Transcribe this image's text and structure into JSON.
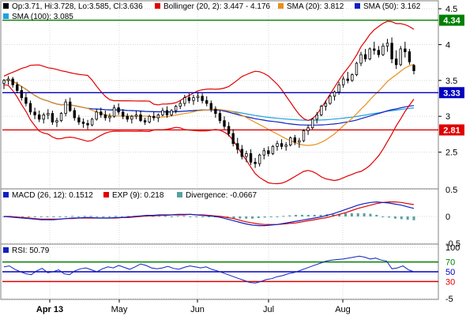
{
  "colors": {
    "frame": "#808080",
    "grid": "#d8d8d8",
    "candle": "#000000",
    "bollinger": "#e00000",
    "sma20": "#e8901c",
    "sma50": "#1020c0",
    "sma100": "#20a0e0",
    "resistance": "#008000",
    "support": "#0000c0",
    "lower": "#e00000",
    "macd": "#1020c0",
    "macd_exp": "#e00000",
    "divergence": "#5aa0a0",
    "rsi": "#1020c0"
  },
  "legend_price": {
    "ohlc": "Op:3.71, Hi:3.728, Lo:3.585, Cl:3.636",
    "bollinger": "Bollinger (20, 2): 3.447 - 4.176",
    "sma20": "SMA (20): 3.812",
    "sma50": "SMA (50): 3.162",
    "sma100": "SMA (100): 3.085"
  },
  "legend_macd": {
    "macd": "MACD (26, 12): 0.1512",
    "exp": "EXP (9): 0.218",
    "divergence": "Divergence: -0.0667"
  },
  "legend_rsi": {
    "rsi": "RSI: 50.79"
  },
  "x_axis_labels": [
    "Apr 13",
    "May",
    "Jun",
    "Jul",
    "Aug"
  ],
  "chart_data": [
    {
      "type": "candlestick",
      "panel": "price",
      "ylim": [
        2.0,
        4.6
      ],
      "yticks": [
        "2.5",
        "3",
        "3.5",
        "4",
        "4.5"
      ],
      "horizontal_levels": [
        {
          "value": 4.34,
          "label": "4.34",
          "color": "#008000"
        },
        {
          "value": 3.33,
          "label": "3.33",
          "color": "#0000c0"
        },
        {
          "value": 2.81,
          "label": "2.81",
          "color": "#e00000"
        }
      ],
      "ohlc": [
        [
          3.46,
          3.52,
          3.38,
          3.5
        ],
        [
          3.5,
          3.56,
          3.44,
          3.52
        ],
        [
          3.52,
          3.55,
          3.4,
          3.44
        ],
        [
          3.44,
          3.48,
          3.32,
          3.36
        ],
        [
          3.36,
          3.42,
          3.22,
          3.26
        ],
        [
          3.26,
          3.32,
          3.14,
          3.18
        ],
        [
          3.18,
          3.22,
          3.02,
          3.06
        ],
        [
          3.06,
          3.12,
          2.96,
          3.02
        ],
        [
          3.02,
          3.08,
          2.92,
          2.96
        ],
        [
          2.96,
          3.05,
          2.9,
          3.02
        ],
        [
          3.02,
          3.1,
          2.96,
          3.04
        ],
        [
          3.04,
          3.08,
          2.88,
          2.92
        ],
        [
          2.92,
          2.98,
          2.85,
          2.94
        ],
        [
          2.94,
          3.06,
          2.92,
          3.04
        ],
        [
          3.04,
          3.24,
          3.0,
          3.2
        ],
        [
          3.2,
          3.26,
          3.06,
          3.08
        ],
        [
          3.08,
          3.12,
          2.94,
          2.98
        ],
        [
          2.98,
          3.02,
          2.88,
          2.92
        ],
        [
          2.92,
          2.97,
          2.84,
          2.9
        ],
        [
          2.9,
          2.95,
          2.82,
          2.88
        ],
        [
          2.88,
          2.98,
          2.86,
          2.96
        ],
        [
          2.96,
          3.1,
          2.94,
          3.06
        ],
        [
          3.06,
          3.12,
          2.98,
          3.02
        ],
        [
          3.02,
          3.08,
          2.94,
          2.98
        ],
        [
          2.98,
          3.04,
          2.92,
          3.0
        ],
        [
          3.0,
          3.16,
          2.98,
          3.12
        ],
        [
          3.12,
          3.18,
          3.02,
          3.06
        ],
        [
          3.06,
          3.1,
          2.96,
          3.0
        ],
        [
          3.0,
          3.04,
          2.92,
          2.96
        ],
        [
          2.96,
          3.02,
          2.9,
          3.0
        ],
        [
          3.0,
          3.08,
          2.96,
          3.02
        ],
        [
          3.02,
          3.08,
          2.92,
          2.94
        ],
        [
          2.94,
          2.98,
          2.88,
          2.92
        ],
        [
          2.92,
          3.02,
          2.9,
          3.0
        ],
        [
          3.0,
          3.06,
          2.94,
          2.98
        ],
        [
          2.98,
          3.04,
          2.92,
          3.02
        ],
        [
          3.02,
          3.12,
          3.0,
          3.08
        ],
        [
          3.08,
          3.14,
          2.98,
          3.02
        ],
        [
          3.02,
          3.1,
          3.0,
          3.08
        ],
        [
          3.08,
          3.16,
          3.04,
          3.14
        ],
        [
          3.14,
          3.22,
          3.1,
          3.18
        ],
        [
          3.18,
          3.3,
          3.14,
          3.26
        ],
        [
          3.26,
          3.32,
          3.18,
          3.22
        ],
        [
          3.22,
          3.3,
          3.16,
          3.26
        ],
        [
          3.26,
          3.34,
          3.2,
          3.28
        ],
        [
          3.28,
          3.32,
          3.18,
          3.22
        ],
        [
          3.22,
          3.28,
          3.14,
          3.18
        ],
        [
          3.18,
          3.22,
          3.06,
          3.1
        ],
        [
          3.1,
          3.14,
          2.98,
          3.04
        ],
        [
          3.04,
          3.08,
          2.9,
          2.94
        ],
        [
          2.94,
          3.0,
          2.82,
          2.86
        ],
        [
          2.86,
          2.92,
          2.72,
          2.76
        ],
        [
          2.76,
          2.82,
          2.58,
          2.62
        ],
        [
          2.62,
          2.7,
          2.48,
          2.54
        ],
        [
          2.54,
          2.6,
          2.4,
          2.44
        ],
        [
          2.44,
          2.52,
          2.36,
          2.48
        ],
        [
          2.48,
          2.54,
          2.32,
          2.36
        ],
        [
          2.36,
          2.42,
          2.28,
          2.34
        ],
        [
          2.34,
          2.48,
          2.3,
          2.46
        ],
        [
          2.46,
          2.56,
          2.4,
          2.52
        ],
        [
          2.52,
          2.58,
          2.44,
          2.48
        ],
        [
          2.48,
          2.6,
          2.46,
          2.58
        ],
        [
          2.58,
          2.66,
          2.52,
          2.62
        ],
        [
          2.62,
          2.68,
          2.54,
          2.58
        ],
        [
          2.58,
          2.64,
          2.52,
          2.6
        ],
        [
          2.6,
          2.72,
          2.58,
          2.7
        ],
        [
          2.7,
          2.74,
          2.6,
          2.64
        ],
        [
          2.64,
          2.7,
          2.56,
          2.66
        ],
        [
          2.66,
          2.82,
          2.64,
          2.8
        ],
        [
          2.8,
          2.88,
          2.74,
          2.84
        ],
        [
          2.84,
          2.98,
          2.82,
          2.96
        ],
        [
          2.96,
          3.06,
          2.9,
          3.02
        ],
        [
          3.02,
          3.16,
          3.0,
          3.14
        ],
        [
          3.14,
          3.22,
          3.08,
          3.18
        ],
        [
          3.18,
          3.3,
          3.16,
          3.28
        ],
        [
          3.28,
          3.36,
          3.22,
          3.34
        ],
        [
          3.34,
          3.48,
          3.3,
          3.44
        ],
        [
          3.44,
          3.56,
          3.4,
          3.52
        ],
        [
          3.52,
          3.62,
          3.46,
          3.5
        ],
        [
          3.5,
          3.6,
          3.48,
          3.58
        ],
        [
          3.58,
          3.76,
          3.56,
          3.74
        ],
        [
          3.74,
          3.9,
          3.7,
          3.86
        ],
        [
          3.86,
          3.94,
          3.76,
          3.8
        ],
        [
          3.8,
          3.96,
          3.78,
          3.94
        ],
        [
          3.94,
          4.04,
          3.86,
          3.92
        ],
        [
          3.92,
          3.98,
          3.82,
          3.86
        ],
        [
          3.86,
          4.02,
          3.84,
          3.98
        ],
        [
          3.98,
          4.08,
          3.9,
          4.02
        ],
        [
          4.02,
          4.1,
          3.74,
          3.8
        ],
        [
          3.8,
          3.92,
          3.66,
          3.72
        ],
        [
          3.72,
          3.98,
          3.7,
          3.94
        ],
        [
          3.94,
          4.04,
          3.82,
          3.9
        ],
        [
          3.9,
          3.94,
          3.72,
          3.76
        ],
        [
          3.71,
          3.728,
          3.585,
          3.636
        ]
      ]
    },
    {
      "type": "line",
      "panel": "macd",
      "ylim": [
        -0.5,
        0.5
      ],
      "yticks": [
        "-0.5",
        "0",
        "0.5"
      ],
      "series": [
        {
          "name": "MACD (26, 12)",
          "values": [
            0.0,
            -0.01,
            -0.02,
            -0.03,
            -0.04,
            -0.05,
            -0.06,
            -0.06,
            -0.06,
            -0.05,
            -0.04,
            -0.03,
            -0.03,
            -0.02,
            -0.02,
            -0.03,
            -0.03,
            -0.03,
            -0.02,
            -0.02,
            -0.01,
            0.0,
            0.01,
            0.02,
            0.02,
            0.03,
            0.03,
            0.03,
            0.04,
            0.04,
            0.04,
            0.03,
            0.02,
            0.01,
            0.0,
            -0.02,
            -0.05,
            -0.08,
            -0.11,
            -0.14,
            -0.16,
            -0.17,
            -0.17,
            -0.16,
            -0.15,
            -0.13,
            -0.11,
            -0.09,
            -0.07,
            -0.05,
            -0.03,
            -0.01,
            0.02,
            0.05,
            0.09,
            0.13,
            0.17,
            0.21,
            0.24,
            0.26,
            0.27,
            0.26,
            0.25,
            0.23,
            0.21,
            0.18,
            0.15
          ]
        },
        {
          "name": "EXP (9)",
          "values": [
            0.0,
            0.0,
            -0.01,
            -0.02,
            -0.03,
            -0.04,
            -0.05,
            -0.05,
            -0.05,
            -0.05,
            -0.04,
            -0.04,
            -0.03,
            -0.03,
            -0.03,
            -0.03,
            -0.03,
            -0.03,
            -0.03,
            -0.02,
            -0.02,
            -0.01,
            0.0,
            0.01,
            0.01,
            0.02,
            0.02,
            0.03,
            0.03,
            0.03,
            0.04,
            0.03,
            0.03,
            0.02,
            0.01,
            0.0,
            -0.02,
            -0.04,
            -0.07,
            -0.1,
            -0.12,
            -0.14,
            -0.15,
            -0.15,
            -0.15,
            -0.14,
            -0.13,
            -0.12,
            -0.1,
            -0.08,
            -0.06,
            -0.04,
            -0.02,
            0.01,
            0.04,
            0.07,
            0.11,
            0.15,
            0.18,
            0.21,
            0.24,
            0.26,
            0.27,
            0.27,
            0.26,
            0.24,
            0.22
          ]
        }
      ],
      "divergence": [
        0.0,
        -0.01,
        -0.01,
        -0.01,
        -0.01,
        -0.01,
        -0.01,
        -0.01,
        -0.01,
        0.0,
        0.0,
        0.01,
        0.0,
        0.01,
        0.01,
        0.0,
        0.0,
        0.0,
        0.01,
        0.0,
        0.01,
        0.01,
        0.01,
        0.01,
        0.01,
        0.01,
        0.01,
        0.0,
        0.01,
        0.01,
        0.0,
        0.0,
        -0.01,
        -0.01,
        -0.01,
        -0.02,
        -0.03,
        -0.04,
        -0.04,
        -0.04,
        -0.04,
        -0.03,
        -0.02,
        -0.01,
        0.0,
        0.01,
        0.02,
        0.03,
        0.03,
        0.03,
        0.03,
        0.03,
        0.04,
        0.04,
        0.05,
        0.06,
        0.06,
        0.06,
        0.06,
        0.05,
        0.03,
        0.0,
        -0.02,
        -0.04,
        -0.05,
        -0.06,
        -0.07
      ]
    },
    {
      "type": "line",
      "panel": "rsi",
      "ylim": [
        -5,
        105
      ],
      "yticks": [
        "-5",
        "30",
        "50",
        "70",
        "100"
      ],
      "horizontal_levels": [
        {
          "value": 70,
          "color": "#008000"
        },
        {
          "value": 50,
          "color": "#0000c0"
        },
        {
          "value": 30,
          "color": "#e00000"
        }
      ],
      "series": [
        {
          "name": "RSI",
          "values": [
            60,
            62,
            55,
            50,
            46,
            44,
            52,
            57,
            48,
            50,
            54,
            46,
            44,
            52,
            56,
            58,
            54,
            50,
            56,
            60,
            58,
            63,
            59,
            55,
            60,
            66,
            63,
            58,
            56,
            58,
            61,
            57,
            55,
            59,
            62,
            60,
            58,
            60,
            55,
            52,
            48,
            44,
            40,
            36,
            32,
            28,
            27,
            30,
            34,
            36,
            40,
            42,
            46,
            48,
            52,
            56,
            60,
            64,
            68,
            72,
            74,
            75,
            76,
            78,
            80,
            82,
            80,
            76,
            78,
            74,
            72,
            56,
            58,
            62,
            54,
            50
          ]
        }
      ]
    }
  ]
}
